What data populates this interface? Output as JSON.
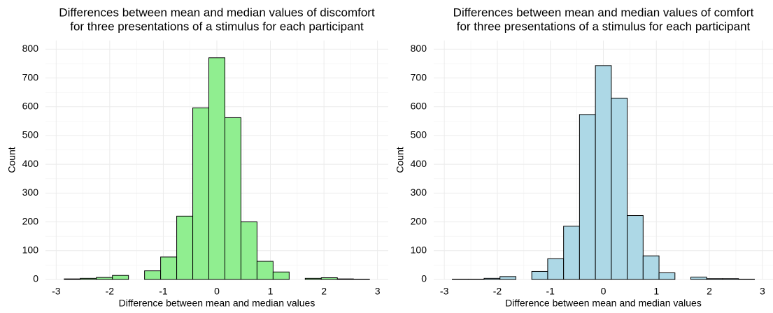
{
  "chart_data": [
    {
      "type": "histogram",
      "title": [
        "Differences between mean and median values of discomfort",
        "for three presentations of a stimulus for each participant"
      ],
      "x_label": "Difference between mean and median values",
      "y_label": "Count",
      "bins": [
        -2.85,
        -2.55,
        -2.25,
        -1.95,
        -1.65,
        -1.35,
        -1.05,
        -0.75,
        -0.45,
        -0.15,
        0.15,
        0.45,
        0.75,
        1.05,
        1.35,
        1.65,
        1.95,
        2.25,
        2.55,
        2.85
      ],
      "values": [
        2,
        4,
        7,
        14,
        0,
        30,
        78,
        220,
        596,
        770,
        562,
        200,
        63,
        26,
        0,
        4,
        6,
        2,
        1
      ],
      "color": "#90ee90",
      "xlim": [
        -3.2,
        3.2
      ],
      "xticks": [
        -3,
        -2,
        -1,
        0,
        1,
        2,
        3
      ],
      "ylim": [
        0,
        830
      ],
      "yticks": [
        0,
        100,
        200,
        300,
        400,
        500,
        600,
        700,
        800
      ],
      "grid": true
    },
    {
      "type": "histogram",
      "title": [
        "Differences between mean and median values of comfort",
        "for three presentations of a stimulus for each participant"
      ],
      "x_label": "Difference between mean and median values",
      "y_label": "Count",
      "bins": [
        -2.85,
        -2.55,
        -2.25,
        -1.95,
        -1.65,
        -1.35,
        -1.05,
        -0.75,
        -0.45,
        -0.15,
        0.15,
        0.45,
        0.75,
        1.05,
        1.35,
        1.65,
        1.95,
        2.25,
        2.55,
        2.85
      ],
      "values": [
        1,
        1,
        4,
        10,
        0,
        28,
        72,
        185,
        573,
        743,
        630,
        222,
        82,
        23,
        0,
        8,
        3,
        3,
        1
      ],
      "color": "#add8e6",
      "xlim": [
        -3.2,
        3.2
      ],
      "xticks": [
        -3,
        -2,
        -1,
        0,
        1,
        2,
        3
      ],
      "ylim": [
        0,
        830
      ],
      "yticks": [
        0,
        100,
        200,
        300,
        400,
        500,
        600,
        700,
        800
      ],
      "grid": true
    }
  ]
}
